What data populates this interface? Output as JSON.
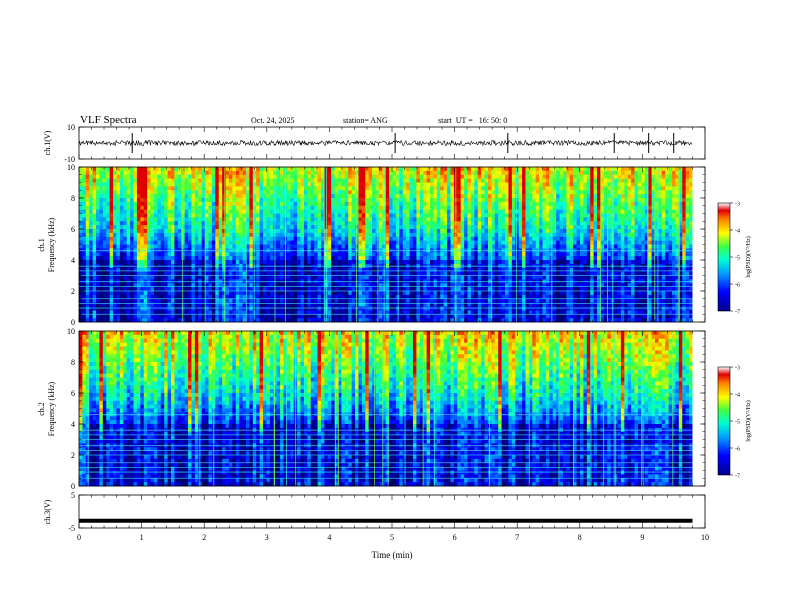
{
  "header": {
    "title": "VLF Spectra",
    "date": "Oct. 24, 2025",
    "station": "station= ANG",
    "start": "start  UT =   16: 50: 0"
  },
  "colors": {
    "spec_low": "#00008b",
    "spec_mid": "#00c8ff",
    "spec_green": "#40ff40",
    "spec_high": "#ff2000",
    "trace": "#000000"
  },
  "chart_data": [
    {
      "type": "line",
      "panel": "ch1-waveform",
      "ylabel": "ch.1(V)",
      "ylim": [
        -10,
        10
      ],
      "ytick_labels": [
        "10",
        "-10"
      ],
      "xlim": [
        0,
        10
      ],
      "baseline": 0,
      "spikes_x": [
        0.85,
        5.05,
        6.85,
        8.55,
        9.1,
        9.5
      ]
    },
    {
      "type": "heatmap",
      "panel": "ch1-spectrogram",
      "ylabel": "ch.1\nFrequency (kHz)",
      "ylim": [
        0,
        10
      ],
      "ytick_labels": [
        "0",
        "2",
        "4",
        "6",
        "8",
        "10"
      ],
      "xlim": [
        0,
        9.8
      ],
      "colorbar": {
        "label": "log(PSD)(V²/Hz)",
        "range": [
          -7,
          -3
        ],
        "tick_labels": [
          "-3",
          "-4",
          "-5",
          "-6",
          "-7"
        ]
      }
    },
    {
      "type": "heatmap",
      "panel": "ch2-spectrogram",
      "ylabel": "ch.2\nFrequency (kHz)",
      "ylim": [
        0,
        10
      ],
      "ytick_labels": [
        "0",
        "2",
        "4",
        "6",
        "8",
        "10"
      ],
      "xlim": [
        0,
        9.8
      ],
      "colorbar": {
        "label": "log(PSD)(V²/Hz)",
        "range": [
          -7,
          -3
        ],
        "tick_labels": [
          "-3",
          "-4",
          "-5",
          "-6",
          "-7"
        ]
      }
    },
    {
      "type": "line",
      "panel": "ch3-waveform",
      "ylabel": "ch.3(V)",
      "ylim": [
        -5,
        5
      ],
      "ytick_labels": [
        "5",
        "-5"
      ],
      "xlim": [
        0,
        10
      ],
      "baseline": -2.8
    }
  ],
  "xaxis": {
    "label": "Time (min)",
    "tick_labels": [
      "0",
      "1",
      "2",
      "3",
      "4",
      "5",
      "6",
      "7",
      "8",
      "9",
      "10"
    ],
    "range": [
      0,
      10
    ]
  }
}
